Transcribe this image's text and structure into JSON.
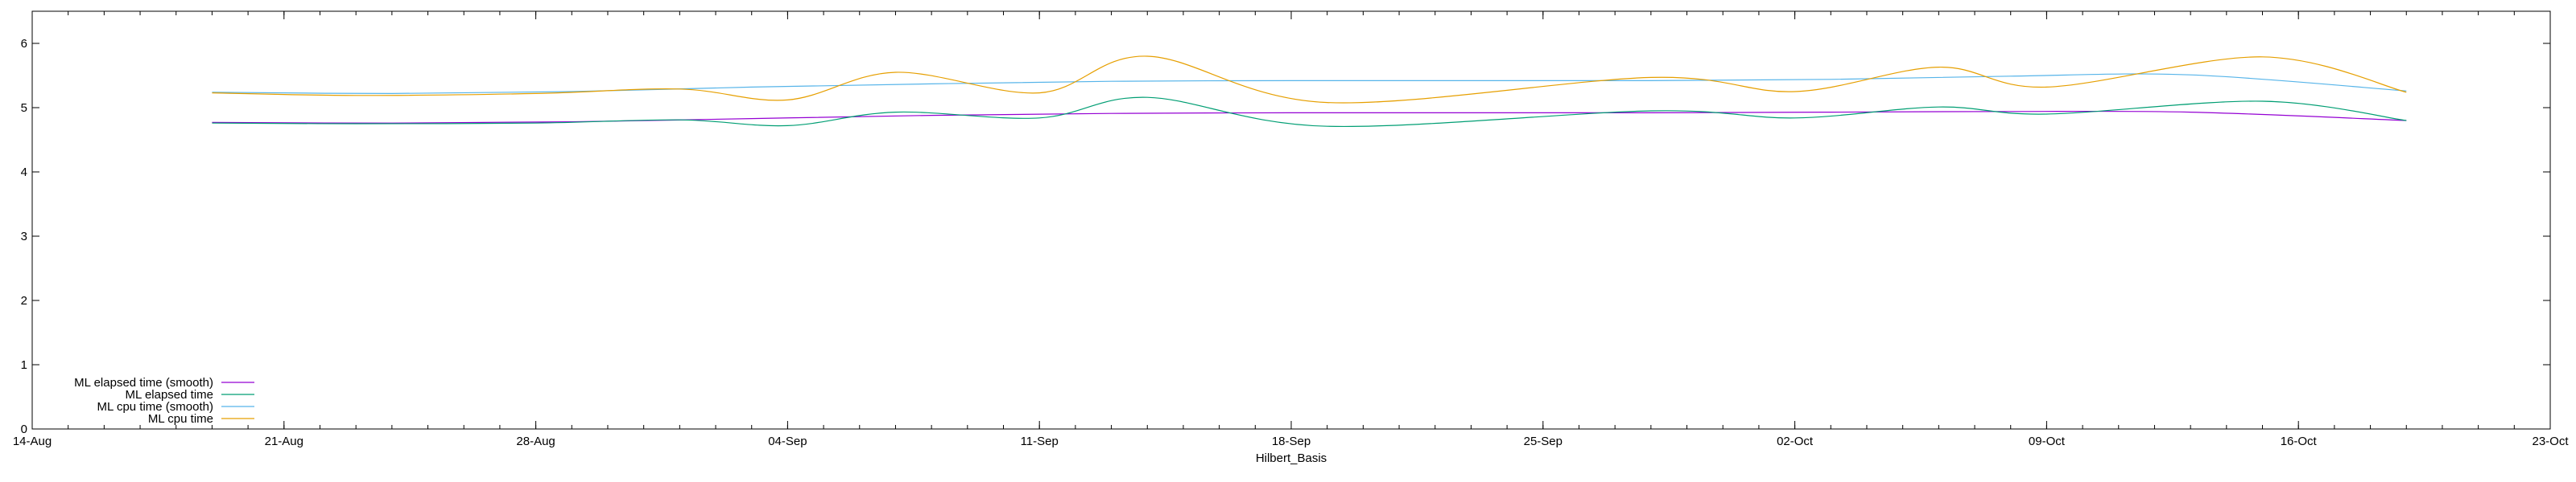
{
  "chart_data": {
    "type": "line",
    "xlabel": "Hilbert_Basis",
    "ylabel": "",
    "xlim": [
      "2024-08-14",
      "2024-10-23"
    ],
    "ylim": [
      0,
      6.5
    ],
    "x_ticks": [
      "14-Aug",
      "21-Aug",
      "28-Aug",
      "04-Sep",
      "11-Sep",
      "18-Sep",
      "25-Sep",
      "02-Oct",
      "09-Oct",
      "16-Oct",
      "23-Oct"
    ],
    "x_tick_dates": [
      "2024-08-14",
      "2024-08-21",
      "2024-08-28",
      "2024-09-04",
      "2024-09-11",
      "2024-09-18",
      "2024-09-25",
      "2024-10-02",
      "2024-10-09",
      "2024-10-16",
      "2024-10-23"
    ],
    "y_ticks": [
      0,
      1,
      2,
      3,
      4,
      5,
      6
    ],
    "grid": false,
    "legend_position": "bottom-left",
    "series": [
      {
        "name": "ML elapsed time (smooth)",
        "color": "#9400d3",
        "points": [
          [
            "2024-08-19",
            4.77
          ],
          [
            "2024-08-24",
            4.76
          ],
          [
            "2024-08-29",
            4.78
          ],
          [
            "2024-09-03",
            4.83
          ],
          [
            "2024-09-08",
            4.88
          ],
          [
            "2024-09-13",
            4.91
          ],
          [
            "2024-09-18",
            4.92
          ],
          [
            "2024-09-23",
            4.92
          ],
          [
            "2024-09-28",
            4.92
          ],
          [
            "2024-10-03",
            4.93
          ],
          [
            "2024-10-08",
            4.94
          ],
          [
            "2024-10-13",
            4.93
          ],
          [
            "2024-10-19",
            4.8
          ]
        ]
      },
      {
        "name": "ML elapsed time",
        "color": "#009e73",
        "points": [
          [
            "2024-08-19",
            4.76
          ],
          [
            "2024-08-23",
            4.75
          ],
          [
            "2024-08-28",
            4.76
          ],
          [
            "2024-09-01",
            4.81
          ],
          [
            "2024-09-04",
            4.72
          ],
          [
            "2024-09-07",
            4.93
          ],
          [
            "2024-09-11",
            4.84
          ],
          [
            "2024-09-14",
            5.16
          ],
          [
            "2024-09-19",
            4.71
          ],
          [
            "2024-09-28",
            4.95
          ],
          [
            "2024-10-02",
            4.84
          ],
          [
            "2024-10-06",
            5.01
          ],
          [
            "2024-10-09",
            4.9
          ],
          [
            "2024-10-15",
            5.1
          ],
          [
            "2024-10-19",
            4.8
          ]
        ]
      },
      {
        "name": "ML cpu time (smooth)",
        "color": "#56b4e9",
        "points": [
          [
            "2024-08-19",
            5.24
          ],
          [
            "2024-08-24",
            5.22
          ],
          [
            "2024-08-29",
            5.25
          ],
          [
            "2024-09-03",
            5.32
          ],
          [
            "2024-09-08",
            5.37
          ],
          [
            "2024-09-13",
            5.41
          ],
          [
            "2024-09-18",
            5.42
          ],
          [
            "2024-09-23",
            5.42
          ],
          [
            "2024-09-28",
            5.42
          ],
          [
            "2024-10-03",
            5.44
          ],
          [
            "2024-10-08",
            5.49
          ],
          [
            "2024-10-13",
            5.51
          ],
          [
            "2024-10-19",
            5.26
          ]
        ]
      },
      {
        "name": "ML cpu time",
        "color": "#e69f00",
        "points": [
          [
            "2024-08-19",
            5.23
          ],
          [
            "2024-08-23",
            5.19
          ],
          [
            "2024-08-28",
            5.22
          ],
          [
            "2024-09-01",
            5.29
          ],
          [
            "2024-09-04",
            5.12
          ],
          [
            "2024-09-07",
            5.55
          ],
          [
            "2024-09-11",
            5.23
          ],
          [
            "2024-09-14",
            5.8
          ],
          [
            "2024-09-19",
            5.08
          ],
          [
            "2024-09-28",
            5.47
          ],
          [
            "2024-10-02",
            5.25
          ],
          [
            "2024-10-06",
            5.63
          ],
          [
            "2024-10-09",
            5.32
          ],
          [
            "2024-10-15",
            5.79
          ],
          [
            "2024-10-19",
            5.24
          ]
        ]
      }
    ]
  }
}
